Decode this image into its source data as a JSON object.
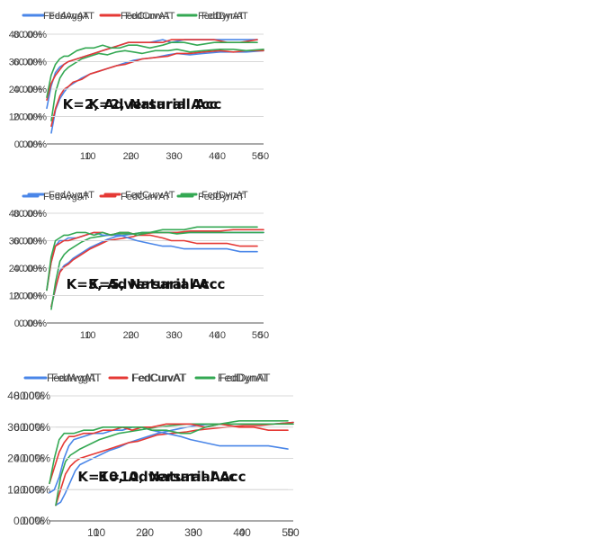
{
  "chart_data": [
    {
      "type": "line",
      "title": "K=2, Natural Acc",
      "xlim": [
        1,
        50
      ],
      "ylim": [
        0,
        0.8
      ],
      "yticks": [
        "0.00%",
        "20.00%",
        "40.00%",
        "60.00%",
        "80.00%"
      ],
      "xticks": [
        "10",
        "20",
        "30",
        "40",
        "50"
      ],
      "xlabel": "",
      "ylabel": "",
      "legend": "top",
      "x": [
        1,
        2,
        3,
        4,
        5,
        6,
        8,
        10,
        12,
        14,
        16,
        18,
        20,
        22,
        25,
        28,
        30,
        33,
        36,
        40,
        43,
        46,
        50
      ],
      "series": [
        {
          "name": "FedAvgAT",
          "color": "#4a86e8",
          "values": [
            0.08,
            0.25,
            0.33,
            0.38,
            0.42,
            0.44,
            0.48,
            0.51,
            0.53,
            0.55,
            0.57,
            0.59,
            0.61,
            0.62,
            0.63,
            0.65,
            0.66,
            0.65,
            0.66,
            0.67,
            0.67,
            0.67,
            0.68
          ]
        },
        {
          "name": "FedCurvAT",
          "color": "#e53935",
          "values": [
            0.13,
            0.26,
            0.35,
            0.4,
            0.42,
            0.45,
            0.47,
            0.51,
            0.53,
            0.55,
            0.57,
            0.58,
            0.6,
            0.62,
            0.63,
            0.64,
            0.66,
            0.66,
            0.67,
            0.68,
            0.67,
            0.68,
            0.68
          ]
        },
        {
          "name": "FedDynAT",
          "color": "#34a853",
          "values": [
            0.17,
            0.38,
            0.48,
            0.53,
            0.56,
            0.58,
            0.62,
            0.64,
            0.66,
            0.65,
            0.67,
            0.68,
            0.67,
            0.66,
            0.68,
            0.68,
            0.69,
            0.67,
            0.68,
            0.69,
            0.69,
            0.68,
            0.69
          ]
        }
      ]
    },
    {
      "type": "line",
      "title": "K=2, Adversarial Acc",
      "xlim": [
        1,
        50
      ],
      "ylim": [
        0,
        0.4
      ],
      "yticks": [
        "0.00%",
        "10.00%",
        "20.00%",
        "30.00%",
        "40.00%"
      ],
      "xticks": [
        "10",
        "20",
        "30",
        "40",
        "50"
      ],
      "xlabel": "",
      "ylabel": "",
      "legend": "top",
      "x": [
        1,
        2,
        3,
        4,
        5,
        6,
        8,
        10,
        12,
        14,
        16,
        18,
        20,
        22,
        25,
        28,
        30,
        33,
        36,
        40,
        43,
        46,
        50
      ],
      "series": [
        {
          "name": "FedAvgAT",
          "color": "#4a86e8",
          "values": [
            0.13,
            0.21,
            0.26,
            0.28,
            0.29,
            0.3,
            0.31,
            0.32,
            0.33,
            0.34,
            0.35,
            0.36,
            0.37,
            0.37,
            0.37,
            0.38,
            0.37,
            0.38,
            0.38,
            0.38,
            0.38,
            0.38,
            0.38
          ]
        },
        {
          "name": "FedCurvAT",
          "color": "#e53935",
          "values": [
            0.16,
            0.22,
            0.25,
            0.27,
            0.29,
            0.3,
            0.31,
            0.32,
            0.33,
            0.34,
            0.35,
            0.36,
            0.37,
            0.37,
            0.37,
            0.37,
            0.38,
            0.38,
            0.38,
            0.38,
            0.37,
            0.37,
            0.38
          ]
        },
        {
          "name": "FedDynAT",
          "color": "#34a853",
          "values": [
            0.17,
            0.25,
            0.29,
            0.31,
            0.32,
            0.32,
            0.34,
            0.35,
            0.35,
            0.36,
            0.35,
            0.35,
            0.36,
            0.36,
            0.35,
            0.36,
            0.37,
            0.37,
            0.36,
            0.37,
            0.37,
            0.37,
            0.37
          ]
        }
      ]
    },
    {
      "type": "line",
      "title": "K=5, Natural Acc",
      "xlim": [
        1,
        50
      ],
      "ylim": [
        0,
        0.8
      ],
      "yticks": [
        "0.00%",
        "20.00%",
        "40.00%",
        "60.00%",
        "80.00%"
      ],
      "xticks": [
        "10",
        "20",
        "30",
        "40",
        "50"
      ],
      "xlabel": "",
      "ylabel": "",
      "legend": "top",
      "x": [
        1,
        2,
        3,
        4,
        5,
        6,
        8,
        10,
        12,
        14,
        16,
        18,
        20,
        22,
        25,
        28,
        30,
        33,
        36,
        40,
        43,
        46,
        50
      ],
      "series": [
        {
          "name": "FedAvgAT",
          "color": "#4a86e8",
          "values": [
            0.12,
            0.25,
            0.38,
            0.42,
            0.44,
            0.47,
            0.51,
            0.55,
            0.58,
            0.61,
            0.63,
            0.64,
            0.65,
            0.66,
            0.66,
            0.66,
            0.66,
            0.66,
            0.66,
            0.66,
            0.66,
            0.66,
            0.66
          ]
        },
        {
          "name": "FedCurvAT",
          "color": "#e53935",
          "values": [
            0.12,
            0.26,
            0.37,
            0.41,
            0.43,
            0.46,
            0.5,
            0.54,
            0.57,
            0.6,
            0.61,
            0.62,
            0.63,
            0.65,
            0.66,
            0.66,
            0.66,
            0.67,
            0.67,
            0.67,
            0.68,
            0.68,
            0.68
          ]
        },
        {
          "name": "FedDynAT",
          "color": "#34a853",
          "values": [
            0.1,
            0.3,
            0.45,
            0.5,
            0.53,
            0.55,
            0.59,
            0.62,
            0.63,
            0.64,
            0.65,
            0.65,
            0.65,
            0.66,
            0.66,
            0.66,
            0.65,
            0.66,
            0.66,
            0.66,
            0.66,
            0.66,
            0.66
          ]
        }
      ]
    },
    {
      "type": "line",
      "title": "K=5, Adversarial Acc",
      "xlim": [
        1,
        50
      ],
      "ylim": [
        0,
        0.4
      ],
      "yticks": [
        "0.00%",
        "10.00%",
        "20.00%",
        "30.00%",
        "40.00%"
      ],
      "xticks": [
        "10",
        "20",
        "30",
        "40",
        "50"
      ],
      "xlabel": "",
      "ylabel": "",
      "legend": "top",
      "x": [
        1,
        2,
        3,
        4,
        5,
        6,
        8,
        10,
        12,
        14,
        16,
        18,
        20,
        22,
        25,
        28,
        30,
        33,
        36,
        40,
        43,
        46,
        50
      ],
      "series": [
        {
          "name": "FedAvgAT",
          "color": "#4a86e8",
          "values": [
            0.12,
            0.22,
            0.28,
            0.3,
            0.3,
            0.31,
            0.31,
            0.32,
            0.33,
            0.32,
            0.32,
            0.32,
            0.31,
            0.3,
            0.29,
            0.28,
            0.28,
            0.27,
            0.27,
            0.27,
            0.27,
            0.26,
            0.26
          ]
        },
        {
          "name": "FedCurvAT",
          "color": "#e53935",
          "values": [
            0.12,
            0.22,
            0.28,
            0.29,
            0.3,
            0.3,
            0.31,
            0.32,
            0.33,
            0.33,
            0.32,
            0.33,
            0.33,
            0.32,
            0.32,
            0.31,
            0.3,
            0.3,
            0.29,
            0.29,
            0.29,
            0.28,
            0.28
          ]
        },
        {
          "name": "FedDynAT",
          "color": "#34a853",
          "values": [
            0.12,
            0.24,
            0.3,
            0.31,
            0.32,
            0.32,
            0.33,
            0.33,
            0.32,
            0.33,
            0.32,
            0.33,
            0.33,
            0.32,
            0.33,
            0.34,
            0.34,
            0.34,
            0.35,
            0.35,
            0.35,
            0.35,
            0.35
          ]
        }
      ]
    },
    {
      "type": "line",
      "title": "K=10, Natural Acc",
      "xlim": [
        1,
        50
      ],
      "ylim": [
        0,
        0.8
      ],
      "yticks": [
        "0.00%",
        "20.00%",
        "40.00%",
        "60.00%",
        "80.00%"
      ],
      "xticks": [
        "10",
        "20",
        "30",
        "40",
        "50"
      ],
      "xlabel": "",
      "ylabel": "",
      "legend": "top",
      "x": [
        1,
        2,
        3,
        4,
        5,
        6,
        8,
        10,
        12,
        14,
        16,
        18,
        20,
        22,
        25,
        28,
        30,
        33,
        36,
        40,
        43,
        46,
        50
      ],
      "series": [
        {
          "name": "FedAvgAT",
          "color": "#4a86e8",
          "values": [
            0.1,
            0.12,
            0.18,
            0.25,
            0.32,
            0.36,
            0.39,
            0.42,
            0.45,
            0.47,
            0.5,
            0.52,
            0.54,
            0.56,
            0.58,
            0.6,
            0.61,
            0.62,
            0.62,
            0.62,
            0.62,
            0.62,
            0.63
          ]
        },
        {
          "name": "FedCurvAT",
          "color": "#e53935",
          "values": [
            0.1,
            0.2,
            0.3,
            0.35,
            0.38,
            0.4,
            0.42,
            0.44,
            0.46,
            0.48,
            0.5,
            0.51,
            0.53,
            0.55,
            0.56,
            0.57,
            0.58,
            0.59,
            0.6,
            0.61,
            0.61,
            0.62,
            0.63
          ]
        },
        {
          "name": "FedDynAT",
          "color": "#34a853",
          "values": [
            0.1,
            0.28,
            0.38,
            0.42,
            0.44,
            0.46,
            0.49,
            0.52,
            0.54,
            0.56,
            0.57,
            0.58,
            0.59,
            0.6,
            0.61,
            0.62,
            0.62,
            0.62,
            0.62,
            0.62,
            0.62,
            0.62,
            0.62
          ]
        }
      ]
    },
    {
      "type": "line",
      "title": "K=10, Adversarial Acc",
      "xlim": [
        1,
        50
      ],
      "ylim": [
        0,
        0.4
      ],
      "yticks": [
        "0.00%",
        "10.00%",
        "20.00%",
        "30.00%",
        "40.00%"
      ],
      "xticks": [
        "10",
        "20",
        "30",
        "40",
        "50"
      ],
      "xlabel": "",
      "ylabel": "",
      "legend": "top",
      "x": [
        1,
        2,
        3,
        4,
        5,
        6,
        8,
        10,
        12,
        14,
        16,
        18,
        20,
        22,
        25,
        28,
        30,
        33,
        36,
        40,
        43,
        46,
        50
      ],
      "series": [
        {
          "name": "FedAvgAT",
          "color": "#4a86e8",
          "values": [
            0.09,
            0.1,
            0.14,
            0.2,
            0.24,
            0.26,
            0.27,
            0.28,
            0.28,
            0.29,
            0.29,
            0.3,
            0.3,
            0.29,
            0.28,
            0.27,
            0.26,
            0.25,
            0.24,
            0.24,
            0.24,
            0.24,
            0.23
          ]
        },
        {
          "name": "FedCurvAT",
          "color": "#e53935",
          "values": [
            0.12,
            0.17,
            0.22,
            0.25,
            0.27,
            0.27,
            0.28,
            0.28,
            0.29,
            0.29,
            0.3,
            0.29,
            0.3,
            0.3,
            0.31,
            0.31,
            0.31,
            0.3,
            0.31,
            0.3,
            0.3,
            0.29,
            0.29
          ]
        },
        {
          "name": "FedDynAT",
          "color": "#34a853",
          "values": [
            0.12,
            0.2,
            0.26,
            0.28,
            0.28,
            0.28,
            0.29,
            0.29,
            0.3,
            0.3,
            0.3,
            0.3,
            0.3,
            0.29,
            0.29,
            0.28,
            0.28,
            0.3,
            0.31,
            0.32,
            0.32,
            0.32,
            0.32
          ]
        }
      ]
    }
  ]
}
